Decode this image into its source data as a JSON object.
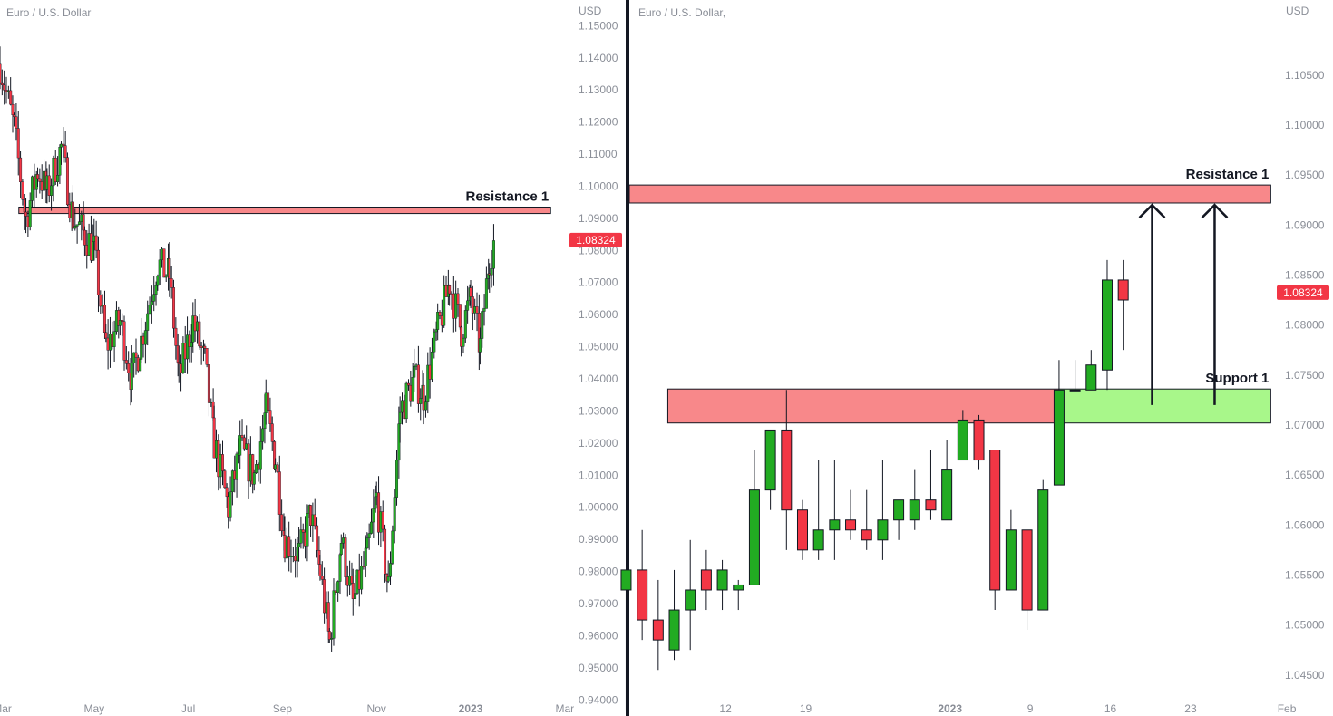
{
  "colors": {
    "up": "#22ab22",
    "down": "#f23645",
    "wick": "#131722",
    "resistance_fill": "#f8888a",
    "support_fill": "#a8f78a",
    "price_tag": "#f23645",
    "divider": "#131722",
    "axis_text": "#8a8e97"
  },
  "chart_data": [
    {
      "type": "candlestick",
      "name": "left-chart",
      "title": "Euro / U.S. Dollar",
      "currency": "USD",
      "ylim": [
        0.935,
        1.158
      ],
      "xlim": [
        1.0,
        13.1
      ],
      "y_ticks": [
        "1.15000",
        "1.14000",
        "1.13000",
        "1.12000",
        "1.11000",
        "1.10000",
        "1.09000",
        "1.08000",
        "1.07000",
        "1.06000",
        "1.05000",
        "1.04000",
        "1.03000",
        "1.02000",
        "1.01000",
        "1.00000",
        "0.99000",
        "0.98000",
        "0.97000",
        "0.96000",
        "0.95000",
        "0.94000"
      ],
      "x_ticks": [
        {
          "label": "Mar",
          "x": 1.05
        },
        {
          "label": "May",
          "x": 3.0
        },
        {
          "label": "Jul",
          "x": 5.0
        },
        {
          "label": "Sep",
          "x": 7.0
        },
        {
          "label": "Nov",
          "x": 9.0
        },
        {
          "label": "2023",
          "x": 11.0
        },
        {
          "label": "Mar",
          "x": 13.0
        }
      ],
      "last_price": "1.08324",
      "price_path": [
        [
          1.0,
          1.138
        ],
        [
          1.3,
          1.118
        ],
        [
          1.55,
          1.09
        ],
        [
          1.8,
          1.105
        ],
        [
          2.0,
          1.098
        ],
        [
          2.3,
          1.112
        ],
        [
          2.55,
          1.09
        ],
        [
          2.8,
          1.085
        ],
        [
          3.0,
          1.08
        ],
        [
          3.25,
          1.05
        ],
        [
          3.55,
          1.058
        ],
        [
          3.8,
          1.04
        ],
        [
          4.0,
          1.052
        ],
        [
          4.35,
          1.076
        ],
        [
          4.6,
          1.072
        ],
        [
          4.8,
          1.04
        ],
        [
          5.1,
          1.058
        ],
        [
          5.35,
          1.045
        ],
        [
          5.55,
          1.02
        ],
        [
          5.85,
          1.0
        ],
        [
          6.1,
          1.018
        ],
        [
          6.4,
          1.01
        ],
        [
          6.65,
          1.03
        ],
        [
          6.85,
          1.015
        ],
        [
          7.05,
          0.99
        ],
        [
          7.35,
          0.985
        ],
        [
          7.6,
          0.998
        ],
        [
          7.8,
          0.98
        ],
        [
          8.0,
          0.958
        ],
        [
          8.25,
          0.99
        ],
        [
          8.5,
          0.97
        ],
        [
          8.8,
          0.985
        ],
        [
          9.0,
          1.003
        ],
        [
          9.25,
          0.975
        ],
        [
          9.5,
          1.03
        ],
        [
          9.8,
          1.04
        ],
        [
          10.0,
          1.035
        ],
        [
          10.3,
          1.055
        ],
        [
          10.55,
          1.07
        ],
        [
          10.8,
          1.055
        ],
        [
          11.0,
          1.065
        ],
        [
          11.2,
          1.05
        ],
        [
          11.4,
          1.078
        ],
        [
          11.5,
          1.083
        ]
      ],
      "zones": [
        {
          "label": "Resistance 1",
          "kind": "resistance",
          "x": [
            1.4,
            12.7
          ],
          "y": [
            1.0915,
            1.0935
          ]
        }
      ]
    },
    {
      "type": "candlestick",
      "name": "right-chart",
      "title": "Euro / U.S. Dollar,",
      "currency": "USD",
      "ylim": [
        1.0409,
        1.1125
      ],
      "xlim": [
        1.2,
        39.2
      ],
      "y_ticks": [
        "1.10500",
        "1.10000",
        "1.09500",
        "1.09000",
        "1.08500",
        "1.08000",
        "1.07500",
        "1.07000",
        "1.06500",
        "1.06000",
        "1.05500",
        "1.05000",
        "1.04500"
      ],
      "x_ticks": [
        {
          "label": "12",
          "x": 7.2
        },
        {
          "label": "19",
          "x": 12.2
        },
        {
          "label": "2023",
          "x": 21.2
        },
        {
          "label": "9",
          "x": 26.2
        },
        {
          "label": "16",
          "x": 31.2
        },
        {
          "label": "23",
          "x": 36.2
        },
        {
          "label": "Feb",
          "x": 42.2
        }
      ],
      "last_price": "1.08324",
      "candles": [
        {
          "x": 1,
          "o": 1.0535,
          "h": 1.0555,
          "l": 1.0415,
          "c": 1.0555
        },
        {
          "x": 2,
          "o": 1.0555,
          "h": 1.0595,
          "l": 1.0485,
          "c": 1.0505
        },
        {
          "x": 3,
          "o": 1.0505,
          "h": 1.0545,
          "l": 1.0455,
          "c": 1.0485
        },
        {
          "x": 4,
          "o": 1.0475,
          "h": 1.0555,
          "l": 1.0465,
          "c": 1.0515
        },
        {
          "x": 5,
          "o": 1.0515,
          "h": 1.0585,
          "l": 1.0475,
          "c": 1.0535
        },
        {
          "x": 6,
          "o": 1.0555,
          "h": 1.0575,
          "l": 1.0515,
          "c": 1.0535
        },
        {
          "x": 7,
          "o": 1.0535,
          "h": 1.0565,
          "l": 1.0515,
          "c": 1.0555
        },
        {
          "x": 8,
          "o": 1.0535,
          "h": 1.0545,
          "l": 1.0515,
          "c": 1.054
        },
        {
          "x": 9,
          "o": 1.054,
          "h": 1.0675,
          "l": 1.054,
          "c": 1.0635
        },
        {
          "x": 10,
          "o": 1.0635,
          "h": 1.0695,
          "l": 1.0615,
          "c": 1.0695
        },
        {
          "x": 11,
          "o": 1.0695,
          "h": 1.0735,
          "l": 1.0575,
          "c": 1.0615
        },
        {
          "x": 12,
          "o": 1.0615,
          "h": 1.0625,
          "l": 1.0565,
          "c": 1.0575
        },
        {
          "x": 13,
          "o": 1.0575,
          "h": 1.0665,
          "l": 1.0565,
          "c": 1.0595
        },
        {
          "x": 14,
          "o": 1.0595,
          "h": 1.0665,
          "l": 1.0565,
          "c": 1.0605
        },
        {
          "x": 15,
          "o": 1.0605,
          "h": 1.0635,
          "l": 1.0585,
          "c": 1.0595
        },
        {
          "x": 16,
          "o": 1.0595,
          "h": 1.0635,
          "l": 1.0575,
          "c": 1.0585
        },
        {
          "x": 17,
          "o": 1.0585,
          "h": 1.0665,
          "l": 1.0565,
          "c": 1.0605
        },
        {
          "x": 18,
          "o": 1.0605,
          "h": 1.0625,
          "l": 1.0585,
          "c": 1.0625
        },
        {
          "x": 19,
          "o": 1.0605,
          "h": 1.0655,
          "l": 1.0595,
          "c": 1.0625
        },
        {
          "x": 20,
          "o": 1.0625,
          "h": 1.0675,
          "l": 1.0605,
          "c": 1.0615
        },
        {
          "x": 21,
          "o": 1.0605,
          "h": 1.0685,
          "l": 1.0605,
          "c": 1.0655
        },
        {
          "x": 22,
          "o": 1.0665,
          "h": 1.0715,
          "l": 1.0665,
          "c": 1.0705
        },
        {
          "x": 23,
          "o": 1.0705,
          "h": 1.071,
          "l": 1.0655,
          "c": 1.0665
        },
        {
          "x": 24,
          "o": 1.0675,
          "h": 1.0675,
          "l": 1.0515,
          "c": 1.0535
        },
        {
          "x": 25,
          "o": 1.0535,
          "h": 1.0615,
          "l": 1.0535,
          "c": 1.0595
        },
        {
          "x": 26,
          "o": 1.0595,
          "h": 1.0595,
          "l": 1.0495,
          "c": 1.0515
        },
        {
          "x": 27,
          "o": 1.0515,
          "h": 1.0645,
          "l": 1.0515,
          "c": 1.0635
        },
        {
          "x": 28,
          "o": 1.064,
          "h": 1.0765,
          "l": 1.064,
          "c": 1.0735
        },
        {
          "x": 29,
          "o": 1.0735,
          "h": 1.0765,
          "l": 1.0735,
          "c": 1.0735
        },
        {
          "x": 30,
          "o": 1.0735,
          "h": 1.0775,
          "l": 1.0735,
          "c": 1.076
        },
        {
          "x": 31,
          "o": 1.0755,
          "h": 1.0865,
          "l": 1.0735,
          "c": 1.0845
        },
        {
          "x": 32,
          "o": 1.0845,
          "h": 1.0865,
          "l": 1.0775,
          "c": 1.0825
        }
      ],
      "zones": [
        {
          "label": "Resistance 1",
          "kind": "resistance",
          "x": [
            1.2,
            41.2
          ],
          "y": [
            1.0922,
            1.094
          ]
        },
        {
          "label": "",
          "kind": "resistance",
          "x": [
            3.6,
            28.0
          ],
          "y": [
            1.0702,
            1.0736
          ]
        },
        {
          "label": "Support 1",
          "kind": "support",
          "x": [
            28.0,
            41.2
          ],
          "y": [
            1.0702,
            1.0736
          ]
        }
      ],
      "arrows": [
        {
          "x": 33.8,
          "from": 1.072,
          "to": 1.092
        },
        {
          "x": 37.7,
          "from": 1.072,
          "to": 1.092
        }
      ]
    }
  ]
}
